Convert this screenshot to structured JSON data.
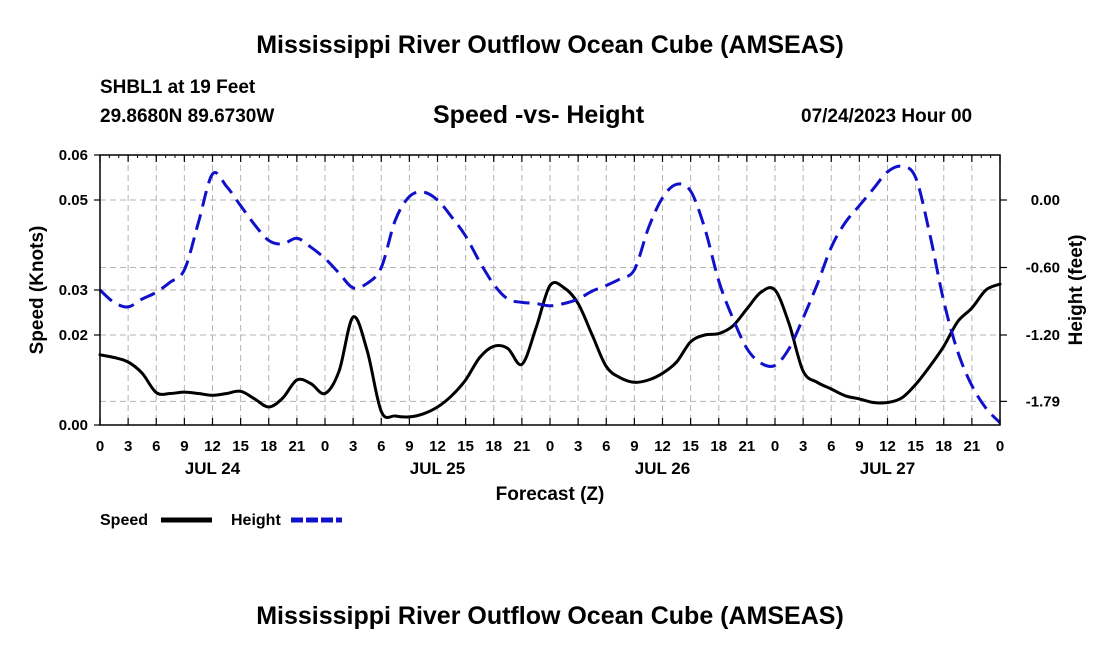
{
  "header": {
    "title": "Mississippi River Outflow Ocean Cube (AMSEAS)",
    "station_line": "SHBL1 at 19 Feet",
    "coords_line": "29.8680N  89.6730W",
    "date_line": "07/24/2023 Hour 00",
    "footer_title": "Mississippi River Outflow Ocean Cube (AMSEAS)"
  },
  "chart_data": {
    "type": "line",
    "title": "Speed -vs- Height",
    "xlabel": "Forecast (Z)",
    "ylabel": "Speed (Knots)",
    "y2label": "Height (feet)",
    "xlim": [
      0,
      96
    ],
    "ylim": [
      0,
      0.06
    ],
    "y2lim": [
      -2.0,
      0.4
    ],
    "grid": true,
    "x_ticks": [
      0,
      3,
      6,
      9,
      12,
      15,
      18,
      21,
      24,
      27,
      30,
      33,
      36,
      39,
      42,
      45,
      48,
      51,
      54,
      57,
      60,
      63,
      66,
      69,
      72,
      75,
      78,
      81,
      84,
      87,
      90,
      93,
      96
    ],
    "x_tick_labels": [
      "0",
      "3",
      "6",
      "9",
      "12",
      "15",
      "18",
      "21",
      "0",
      "3",
      "6",
      "9",
      "12",
      "15",
      "18",
      "21",
      "0",
      "3",
      "6",
      "9",
      "12",
      "15",
      "18",
      "21",
      "0",
      "3",
      "6",
      "9",
      "12",
      "15",
      "18",
      "21",
      "0"
    ],
    "day_labels": [
      {
        "x": 12,
        "label": "JUL 24"
      },
      {
        "x": 36,
        "label": "JUL 25"
      },
      {
        "x": 60,
        "label": "JUL 26"
      },
      {
        "x": 84,
        "label": "JUL 27"
      }
    ],
    "y_ticks": [
      0.0,
      0.02,
      0.03,
      0.05,
      0.06
    ],
    "y_tick_labels": [
      "0.00",
      "0.02",
      "0.03",
      "0.05",
      "0.06"
    ],
    "y2_ticks": [
      0.0,
      -0.6,
      -1.2,
      -1.79
    ],
    "y2_tick_labels": [
      "0.00",
      "-0.60",
      "-1.20",
      "-1.79"
    ],
    "series": [
      {
        "name": "Speed",
        "axis": "left",
        "color": "#000000",
        "style": "solid",
        "x": [
          0,
          1.5,
          3,
          4.5,
          6,
          7.5,
          9,
          10.5,
          12,
          13.5,
          15,
          16.5,
          18,
          19.5,
          21,
          22.5,
          24,
          25.5,
          27,
          28.5,
          30,
          31.5,
          33,
          34.5,
          36,
          37.5,
          39,
          40.5,
          42,
          43.5,
          45,
          46.5,
          48,
          49.5,
          51,
          52.5,
          54,
          55.5,
          57,
          58.5,
          60,
          61.5,
          63,
          64.5,
          66,
          67.5,
          69,
          70.5,
          72,
          73.5,
          75,
          76.5,
          78,
          79.5,
          81,
          82.5,
          84,
          85.5,
          87,
          88.5,
          90,
          91.5,
          93,
          94.5,
          96
        ],
        "values": [
          0.0156,
          0.015,
          0.014,
          0.0115,
          0.0072,
          0.007,
          0.0073,
          0.007,
          0.0066,
          0.007,
          0.0075,
          0.0058,
          0.004,
          0.006,
          0.01,
          0.0092,
          0.007,
          0.012,
          0.024,
          0.0165,
          0.003,
          0.002,
          0.0018,
          0.0025,
          0.004,
          0.0065,
          0.01,
          0.015,
          0.0175,
          0.017,
          0.0135,
          0.0215,
          0.031,
          0.0305,
          0.027,
          0.02,
          0.013,
          0.0105,
          0.0095,
          0.01,
          0.0115,
          0.014,
          0.0185,
          0.02,
          0.0203,
          0.022,
          0.0258,
          0.0295,
          0.03,
          0.0225,
          0.012,
          0.0095,
          0.008,
          0.0065,
          0.0058,
          0.005,
          0.005,
          0.006,
          0.009,
          0.013,
          0.0175,
          0.023,
          0.026,
          0.03,
          0.0313
        ]
      },
      {
        "name": "Height",
        "axis": "right",
        "color": "#1111cc",
        "style": "dashed",
        "x": [
          0,
          1.5,
          3,
          4.5,
          6,
          7.5,
          9,
          10.5,
          12,
          13.5,
          15,
          16.5,
          18,
          19.5,
          21,
          22.5,
          24,
          25.5,
          27,
          28.5,
          30,
          31.5,
          33,
          34.5,
          36,
          37.5,
          39,
          40.5,
          42,
          43.5,
          45,
          46.5,
          48,
          49.5,
          51,
          52.5,
          54,
          55.5,
          57,
          58.5,
          60,
          61.5,
          63,
          64.5,
          66,
          67.5,
          69,
          70.5,
          72,
          73.5,
          75,
          76.5,
          78,
          79.5,
          81,
          82.5,
          84,
          85.5,
          87,
          88.5,
          90,
          91.5,
          93,
          94.5,
          96
        ],
        "values": [
          -0.8,
          -0.91,
          -0.95,
          -0.88,
          -0.82,
          -0.73,
          -0.62,
          -0.2,
          0.23,
          0.12,
          -0.05,
          -0.22,
          -0.36,
          -0.39,
          -0.34,
          -0.42,
          -0.52,
          -0.65,
          -0.78,
          -0.74,
          -0.6,
          -0.18,
          0.03,
          0.07,
          0.0,
          -0.15,
          -0.32,
          -0.55,
          -0.75,
          -0.88,
          -0.91,
          -0.92,
          -0.94,
          -0.92,
          -0.88,
          -0.81,
          -0.76,
          -0.7,
          -0.62,
          -0.25,
          0.02,
          0.14,
          0.08,
          -0.25,
          -0.72,
          -1.05,
          -1.32,
          -1.45,
          -1.47,
          -1.32,
          -1.05,
          -0.75,
          -0.42,
          -0.2,
          -0.05,
          0.1,
          0.25,
          0.3,
          0.2,
          -0.3,
          -0.9,
          -1.35,
          -1.65,
          -1.85,
          -1.98
        ]
      }
    ],
    "legend": [
      {
        "label": "Speed",
        "color": "#000000",
        "style": "solid"
      },
      {
        "label": "Height",
        "color": "#1111cc",
        "style": "dashed"
      }
    ]
  }
}
